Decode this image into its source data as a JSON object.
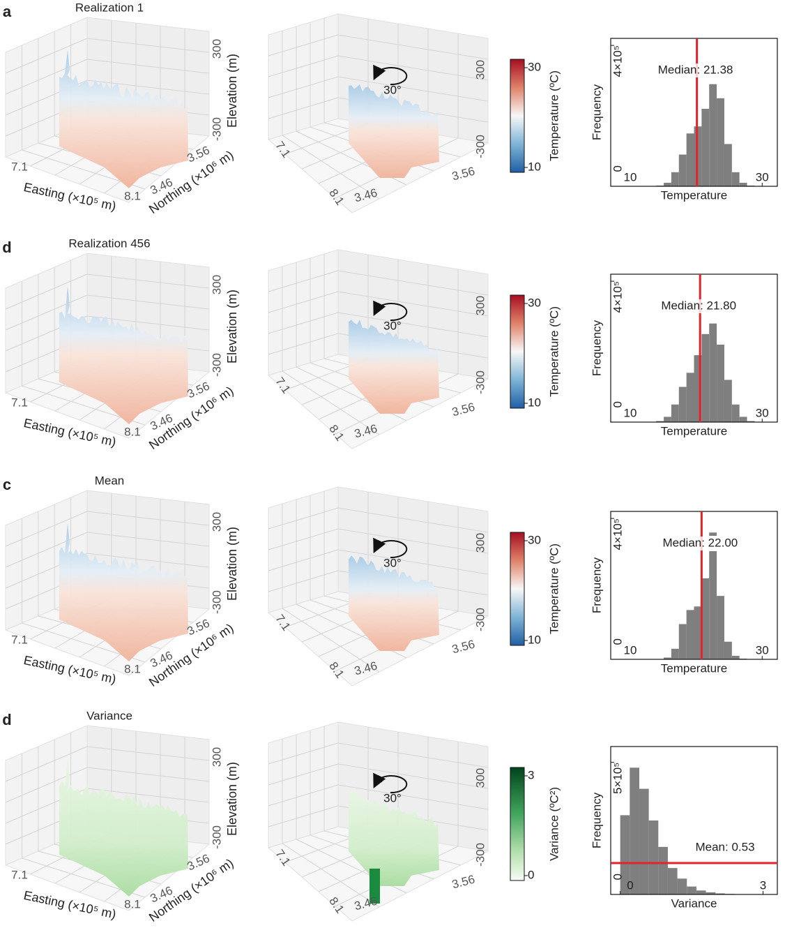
{
  "panels": [
    {
      "letter": "a",
      "title": "Realization 1",
      "axes": {
        "easting_label": "Easting (×10⁵ m)",
        "northing_label": "Northing (×10⁶ m)",
        "elevation_label": "Elevation (m)",
        "easting_ticks": [
          "7.1",
          "8.1"
        ],
        "northing_ticks": [
          "3.46",
          "3.56"
        ],
        "elevation_ticks": [
          "300",
          "-300"
        ]
      },
      "rotation": "30°",
      "colorbar": {
        "label": "Temperature (ºC)",
        "ticks": [
          "30",
          "10"
        ]
      }
    },
    {
      "letter": "d",
      "title": "Realization 456",
      "axes": {
        "easting_label": "Easting (×10⁵ m)",
        "northing_label": "Northing (×10⁶ m)",
        "elevation_label": "Elevation (m)",
        "easting_ticks": [
          "7.1",
          "8.1"
        ],
        "northing_ticks": [
          "3.46",
          "3.56"
        ],
        "elevation_ticks": [
          "300",
          "-300"
        ]
      },
      "rotation": "30°",
      "colorbar": {
        "label": "Temperature (ºC)",
        "ticks": [
          "30",
          "10"
        ]
      }
    },
    {
      "letter": "c",
      "title": "Mean",
      "axes": {
        "easting_label": "Easting (×10⁵ m)",
        "northing_label": "Northing (×10⁶ m)",
        "elevation_label": "Elevation (m)",
        "easting_ticks": [
          "7.1",
          "8.1"
        ],
        "northing_ticks": [
          "3.46",
          "3.56"
        ],
        "elevation_ticks": [
          "300",
          "-300"
        ]
      },
      "rotation": "30°",
      "colorbar": {
        "label": "Temperature (ºC)",
        "ticks": [
          "30",
          "10"
        ]
      }
    },
    {
      "letter": "d",
      "title": "Variance",
      "axes": {
        "easting_label": "Easting (×10⁵ m)",
        "northing_label": "Northing (×10⁶ m)",
        "elevation_label": "Elevation (m)",
        "easting_ticks": [
          "7.1",
          "8.1"
        ],
        "northing_ticks": [
          "3.46",
          "3.56"
        ],
        "elevation_ticks": [
          "300",
          "-300"
        ]
      },
      "rotation": "30°",
      "colorbar": {
        "label": "Variance (ºC²)",
        "ticks": [
          "3",
          "0"
        ]
      }
    }
  ],
  "chart_data": [
    {
      "type": "histogram",
      "xlabel": "Temperature",
      "ylabel": "Frequency",
      "color": "#7f7f7f",
      "bins": [
        10,
        11,
        12,
        13,
        14,
        15,
        16,
        17,
        18,
        19,
        20,
        21,
        22,
        23,
        24,
        25,
        26,
        27,
        28,
        29,
        30
      ],
      "values": [
        0,
        0,
        0,
        0,
        0,
        0,
        2000,
        10000,
        40000,
        90000,
        150000,
        170000,
        220000,
        290000,
        250000,
        120000,
        40000,
        10000,
        2000,
        0
      ],
      "xlim": [
        10,
        32
      ],
      "ylim": [
        0,
        420000
      ],
      "xticks": [
        10,
        30
      ],
      "yticks": [
        0,
        {
          "value": 400000,
          "label": "4×10⁵"
        }
      ],
      "median": 21.38,
      "annotation": "Median: 21.38"
    },
    {
      "type": "histogram",
      "xlabel": "Temperature",
      "ylabel": "Frequency",
      "color": "#7f7f7f",
      "bins": [
        10,
        11,
        12,
        13,
        14,
        15,
        16,
        17,
        18,
        19,
        20,
        21,
        22,
        23,
        24,
        25,
        26,
        27,
        28,
        29,
        30
      ],
      "values": [
        0,
        0,
        0,
        0,
        0,
        0,
        3000,
        15000,
        50000,
        100000,
        140000,
        190000,
        250000,
        280000,
        220000,
        120000,
        50000,
        15000,
        3000,
        0
      ],
      "xlim": [
        10,
        32
      ],
      "ylim": [
        0,
        420000
      ],
      "xticks": [
        10,
        30
      ],
      "yticks": [
        0,
        {
          "value": 400000,
          "label": "4×10⁵"
        }
      ],
      "median": 21.8,
      "annotation": "Median: 21.80"
    },
    {
      "type": "histogram",
      "xlabel": "Temperature",
      "ylabel": "Frequency",
      "color": "#7f7f7f",
      "bins": [
        10,
        11,
        12,
        13,
        14,
        15,
        16,
        17,
        18,
        19,
        20,
        21,
        22,
        23,
        24,
        25,
        26,
        27,
        28,
        29,
        30
      ],
      "values": [
        0,
        0,
        0,
        0,
        0,
        0,
        0,
        5000,
        30000,
        100000,
        140000,
        150000,
        230000,
        360000,
        180000,
        50000,
        10000,
        2000,
        0,
        0
      ],
      "xlim": [
        10,
        32
      ],
      "ylim": [
        0,
        420000
      ],
      "xticks": [
        10,
        30
      ],
      "yticks": [
        0,
        {
          "value": 400000,
          "label": "4×10⁵"
        }
      ],
      "median": 22.0,
      "annotation": "Median: 22.00"
    },
    {
      "type": "histogram",
      "xlabel": "Variance",
      "ylabel": "Frequency",
      "color": "#7f7f7f",
      "bins": [
        0,
        0.2,
        0.4,
        0.6,
        0.8,
        1.0,
        1.2,
        1.4,
        1.6,
        1.8,
        2.0,
        2.2,
        2.4,
        2.6,
        2.8,
        3.0,
        3.2
      ],
      "values": [
        300000,
        480000,
        400000,
        280000,
        180000,
        100000,
        60000,
        30000,
        15000,
        8000,
        4000,
        2000,
        1000,
        500,
        200,
        100
      ],
      "xlim": [
        -0.2,
        3.3
      ],
      "ylim": [
        0,
        560000
      ],
      "xticks": [
        0,
        3
      ],
      "yticks": [
        0,
        {
          "value": 500000,
          "label": "5×10⁵"
        }
      ],
      "annotation": "Mean: 0.53"
    }
  ]
}
